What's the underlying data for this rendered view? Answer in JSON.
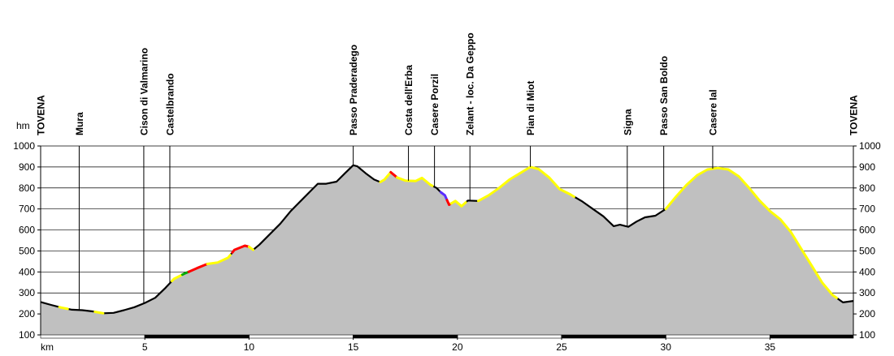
{
  "chart_data": {
    "type": "area",
    "title": "",
    "xlabel": "km",
    "ylabel": "hm",
    "xlim": [
      0,
      39
    ],
    "ylim": [
      100,
      1000
    ],
    "x_ticks": [
      "5",
      "10",
      "15",
      "20",
      "25",
      "30",
      "35"
    ],
    "y_ticks_left": [
      "1000",
      "900",
      "800",
      "700",
      "600",
      "500",
      "400",
      "300",
      "200",
      "100"
    ],
    "y_ticks_right": [
      "1000",
      "900",
      "800",
      "700",
      "600",
      "500",
      "400",
      "300",
      "200",
      "100"
    ],
    "grid": true,
    "colors": {
      "fill": "#c0c0c0",
      "line": "#000000",
      "highlight_yellow": "#ffff00",
      "highlight_red": "#ff0000",
      "highlight_green": "#00aa00",
      "highlight_blue": "#5a2cff",
      "axis_band_dark": "#000000",
      "axis_band_light": "#ffffff"
    },
    "waypoints": [
      {
        "km": 0.0,
        "label": "TOVENA"
      },
      {
        "km": 1.85,
        "label": "Mura"
      },
      {
        "km": 4.95,
        "label": "Cison di Valmarino"
      },
      {
        "km": 6.2,
        "label": "Castelbrando"
      },
      {
        "km": 15.0,
        "label": "Passo Praderadego"
      },
      {
        "km": 17.65,
        "label": "Costa dell'Erba"
      },
      {
        "km": 18.9,
        "label": "Casere Porzil"
      },
      {
        "km": 20.6,
        "label": "Zelant - loc. Da Geppo"
      },
      {
        "km": 23.5,
        "label": "Pian di Miot"
      },
      {
        "km": 28.15,
        "label": "Signa"
      },
      {
        "km": 29.9,
        "label": "Passo San Boldo"
      },
      {
        "km": 32.25,
        "label": "Casere Ial"
      },
      {
        "km": 39.0,
        "label": "TOVENA"
      }
    ],
    "profile": [
      [
        0.0,
        257
      ],
      [
        0.5,
        243
      ],
      [
        1.0,
        230
      ],
      [
        1.5,
        220
      ],
      [
        2.0,
        218
      ],
      [
        2.5,
        212
      ],
      [
        3.0,
        203
      ],
      [
        3.5,
        205
      ],
      [
        4.0,
        218
      ],
      [
        4.5,
        232
      ],
      [
        5.0,
        252
      ],
      [
        5.5,
        277
      ],
      [
        6.0,
        325
      ],
      [
        6.4,
        367
      ],
      [
        6.9,
        392
      ],
      [
        7.5,
        418
      ],
      [
        8.0,
        438
      ],
      [
        8.5,
        445
      ],
      [
        9.0,
        468
      ],
      [
        9.3,
        505
      ],
      [
        9.8,
        525
      ],
      [
        10.0,
        520
      ],
      [
        10.2,
        505
      ],
      [
        10.5,
        530
      ],
      [
        11.0,
        580
      ],
      [
        11.5,
        630
      ],
      [
        12.0,
        690
      ],
      [
        12.5,
        740
      ],
      [
        13.0,
        790
      ],
      [
        13.3,
        820
      ],
      [
        13.7,
        820
      ],
      [
        14.2,
        830
      ],
      [
        14.6,
        870
      ],
      [
        15.0,
        908
      ],
      [
        15.2,
        903
      ],
      [
        15.6,
        870
      ],
      [
        16.0,
        840
      ],
      [
        16.3,
        828
      ],
      [
        16.5,
        840
      ],
      [
        16.8,
        875
      ],
      [
        17.1,
        850
      ],
      [
        17.5,
        835
      ],
      [
        18.0,
        833
      ],
      [
        18.3,
        848
      ],
      [
        18.7,
        815
      ],
      [
        19.0,
        800
      ],
      [
        19.2,
        780
      ],
      [
        19.4,
        765
      ],
      [
        19.6,
        720
      ],
      [
        19.9,
        738
      ],
      [
        20.2,
        713
      ],
      [
        20.5,
        740
      ],
      [
        21.0,
        738
      ],
      [
        21.5,
        765
      ],
      [
        22.0,
        800
      ],
      [
        22.5,
        840
      ],
      [
        23.0,
        870
      ],
      [
        23.5,
        900
      ],
      [
        23.9,
        890
      ],
      [
        24.4,
        850
      ],
      [
        24.9,
        795
      ],
      [
        25.4,
        770
      ],
      [
        26.0,
        735
      ],
      [
        26.5,
        700
      ],
      [
        27.0,
        665
      ],
      [
        27.5,
        618
      ],
      [
        27.8,
        625
      ],
      [
        28.2,
        615
      ],
      [
        28.6,
        640
      ],
      [
        29.0,
        660
      ],
      [
        29.5,
        668
      ],
      [
        30.0,
        700
      ],
      [
        30.5,
        760
      ],
      [
        31.0,
        815
      ],
      [
        31.5,
        860
      ],
      [
        32.0,
        888
      ],
      [
        32.5,
        895
      ],
      [
        33.0,
        888
      ],
      [
        33.5,
        855
      ],
      [
        34.0,
        800
      ],
      [
        34.5,
        740
      ],
      [
        35.0,
        690
      ],
      [
        35.5,
        650
      ],
      [
        36.0,
        590
      ],
      [
        36.5,
        510
      ],
      [
        37.0,
        430
      ],
      [
        37.5,
        350
      ],
      [
        38.0,
        290
      ],
      [
        38.5,
        255
      ],
      [
        39.0,
        262
      ]
    ],
    "highlighted_segments": [
      {
        "color": "#ffff00",
        "from_km": 0.9,
        "to_km": 1.3
      },
      {
        "color": "#ffff00",
        "from_km": 2.6,
        "to_km": 3.0
      },
      {
        "color": "#ffff00",
        "from_km": 6.3,
        "to_km": 6.8
      },
      {
        "color": "#00aa00",
        "from_km": 6.8,
        "to_km": 7.1
      },
      {
        "color": "#ff0000",
        "from_km": 7.1,
        "to_km": 8.0
      },
      {
        "color": "#ffff00",
        "from_km": 8.0,
        "to_km": 9.1
      },
      {
        "color": "#ff0000",
        "from_km": 9.2,
        "to_km": 10.0
      },
      {
        "color": "#ffff00",
        "from_km": 10.0,
        "to_km": 10.2
      },
      {
        "color": "#ffff00",
        "from_km": 16.3,
        "to_km": 16.8
      },
      {
        "color": "#ff0000",
        "from_km": 16.8,
        "to_km": 17.1
      },
      {
        "color": "#ffff00",
        "from_km": 17.1,
        "to_km": 18.8
      },
      {
        "color": "#5a2cff",
        "from_km": 19.2,
        "to_km": 19.5
      },
      {
        "color": "#ff0000",
        "from_km": 19.5,
        "to_km": 19.7
      },
      {
        "color": "#ffff00",
        "from_km": 19.7,
        "to_km": 20.4
      },
      {
        "color": "#ffff00",
        "from_km": 21.0,
        "to_km": 25.6
      },
      {
        "color": "#ffff00",
        "from_km": 30.0,
        "to_km": 38.2
      }
    ],
    "axis_bands": [
      {
        "from_km": 0,
        "to_km": 5,
        "color": "#ffffff"
      },
      {
        "from_km": 5,
        "to_km": 10,
        "color": "#000000"
      },
      {
        "from_km": 10,
        "to_km": 15,
        "color": "#ffffff"
      },
      {
        "from_km": 15,
        "to_km": 20,
        "color": "#000000"
      },
      {
        "from_km": 20,
        "to_km": 25,
        "color": "#ffffff"
      },
      {
        "from_km": 25,
        "to_km": 30,
        "color": "#000000"
      },
      {
        "from_km": 30,
        "to_km": 35,
        "color": "#ffffff"
      },
      {
        "from_km": 35,
        "to_km": 39,
        "color": "#000000"
      }
    ]
  }
}
